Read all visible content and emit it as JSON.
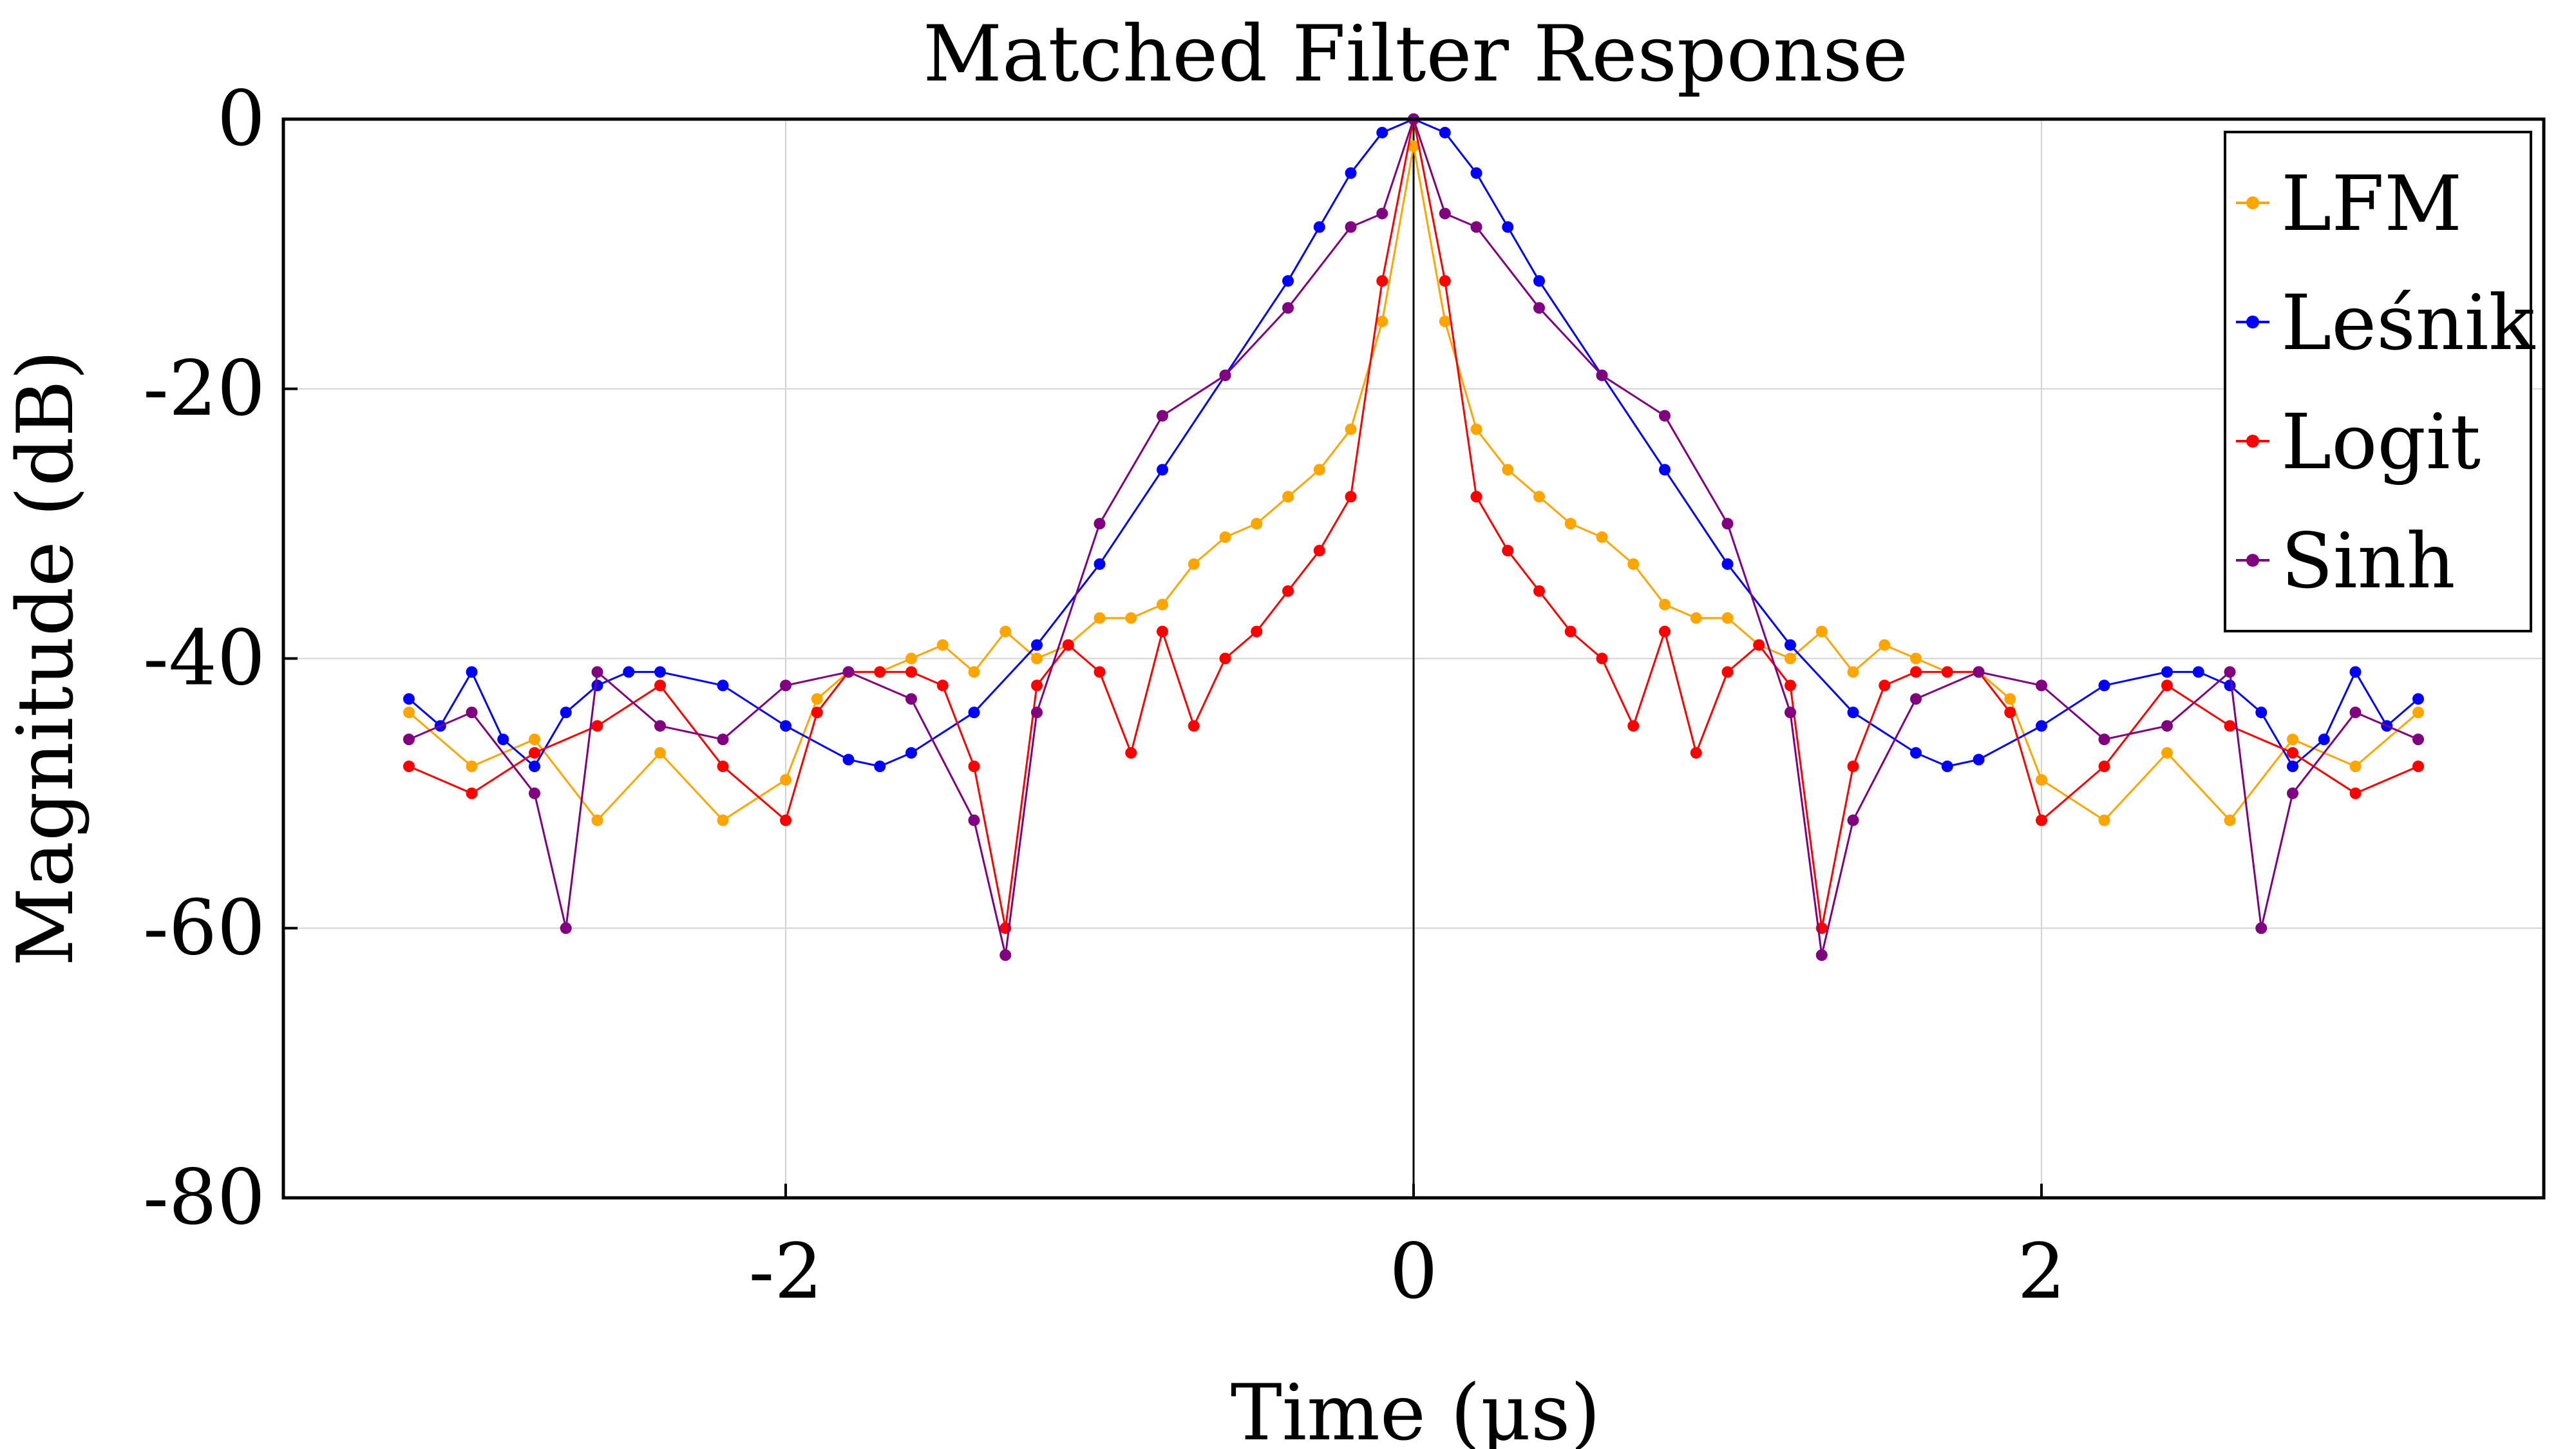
{
  "chart_data": {
    "type": "line",
    "title": "Matched Filter Response",
    "xlabel": "Time (µs)",
    "ylabel": "Magnitude (dB)",
    "xlim": [
      -3.6,
      3.6
    ],
    "ylim": [
      -80,
      0
    ],
    "xticks": [
      -2,
      0,
      2
    ],
    "xtick_labels": [
      "-2",
      "0",
      "2"
    ],
    "yticks": [
      0,
      -20,
      -40,
      -60,
      -80
    ],
    "ytick_labels": [
      "0",
      "-20",
      "-40",
      "-60",
      "-80"
    ],
    "grid": true,
    "markers": true,
    "legend_position": "top-right",
    "series": [
      {
        "name": "LFM",
        "color": "#ffa500",
        "x": [
          -3.2,
          -3.0,
          -2.8,
          -2.6,
          -2.4,
          -2.2,
          -2.0,
          -1.9,
          -1.8,
          -1.7,
          -1.6,
          -1.5,
          -1.4,
          -1.3,
          -1.2,
          -1.1,
          -1.0,
          -0.9,
          -0.8,
          -0.7,
          -0.6,
          -0.5,
          -0.4,
          -0.3,
          -0.2,
          -0.1,
          0.0,
          0.1,
          0.2,
          0.3,
          0.4,
          0.5,
          0.6,
          0.7,
          0.8,
          0.9,
          1.0,
          1.1,
          1.2,
          1.3,
          1.4,
          1.5,
          1.6,
          1.7,
          1.8,
          1.9,
          2.0,
          2.2,
          2.4,
          2.6,
          2.8,
          3.0,
          3.2
        ],
        "y": [
          -44,
          -48,
          -46,
          -52,
          -47,
          -52,
          -49,
          -43,
          -41,
          -41,
          -40,
          -39,
          -41,
          -38,
          -40,
          -39,
          -37,
          -37,
          -36,
          -33,
          -31,
          -30,
          -28,
          -26,
          -23,
          -15,
          -2,
          -15,
          -23,
          -26,
          -28,
          -30,
          -31,
          -33,
          -36,
          -37,
          -37,
          -39,
          -40,
          -38,
          -41,
          -39,
          -40,
          -41,
          -41,
          -43,
          -49,
          -52,
          -47,
          -52,
          -46,
          -48,
          -44
        ]
      },
      {
        "name": "Leśnik",
        "color": "#0000ff",
        "x": [
          -3.2,
          -3.1,
          -3.0,
          -2.9,
          -2.8,
          -2.7,
          -2.6,
          -2.5,
          -2.4,
          -2.2,
          -2.0,
          -1.8,
          -1.7,
          -1.6,
          -1.4,
          -1.2,
          -1.0,
          -0.8,
          -0.6,
          -0.4,
          -0.3,
          -0.2,
          -0.1,
          0.0,
          0.1,
          0.2,
          0.3,
          0.4,
          0.6,
          0.8,
          1.0,
          1.2,
          1.4,
          1.6,
          1.7,
          1.8,
          2.0,
          2.2,
          2.4,
          2.5,
          2.6,
          2.7,
          2.8,
          2.9,
          3.0,
          3.1,
          3.2
        ],
        "y": [
          -43,
          -45,
          -41,
          -46,
          -48,
          -44,
          -42,
          -41,
          -41,
          -42,
          -45,
          -47.5,
          -48,
          -47,
          -44,
          -39,
          -33,
          -26,
          -19,
          -12,
          -8,
          -4,
          -1,
          0,
          -1,
          -4,
          -8,
          -12,
          -19,
          -26,
          -33,
          -39,
          -44,
          -47,
          -48,
          -47.5,
          -45,
          -42,
          -41,
          -41,
          -42,
          -44,
          -48,
          -46,
          -41,
          -45,
          -43
        ]
      },
      {
        "name": "Logit",
        "color": "#ff0000",
        "x": [
          -3.2,
          -3.0,
          -2.8,
          -2.6,
          -2.4,
          -2.2,
          -2.0,
          -1.9,
          -1.8,
          -1.7,
          -1.6,
          -1.5,
          -1.4,
          -1.3,
          -1.2,
          -1.1,
          -1.0,
          -0.9,
          -0.8,
          -0.7,
          -0.6,
          -0.5,
          -0.4,
          -0.3,
          -0.2,
          -0.1,
          0.0,
          0.1,
          0.2,
          0.3,
          0.4,
          0.5,
          0.6,
          0.7,
          0.8,
          0.9,
          1.0,
          1.1,
          1.2,
          1.3,
          1.4,
          1.5,
          1.6,
          1.7,
          1.8,
          1.9,
          2.0,
          2.2,
          2.4,
          2.6,
          2.8,
          3.0,
          3.2
        ],
        "y": [
          -48,
          -50,
          -47,
          -45,
          -42,
          -48,
          -52,
          -44,
          -41,
          -41,
          -41,
          -42,
          -48,
          -60,
          -42,
          -39,
          -41,
          -47,
          -38,
          -45,
          -40,
          -38,
          -35,
          -32,
          -28,
          -12,
          0,
          -12,
          -28,
          -32,
          -35,
          -38,
          -40,
          -45,
          -38,
          -47,
          -41,
          -39,
          -42,
          -60,
          -48,
          -42,
          -41,
          -41,
          -41,
          -44,
          -52,
          -48,
          -42,
          -45,
          -47,
          -50,
          -48
        ]
      },
      {
        "name": "Sinh",
        "color": "#800080",
        "x": [
          -3.2,
          -3.0,
          -2.8,
          -2.7,
          -2.6,
          -2.4,
          -2.2,
          -2.0,
          -1.8,
          -1.6,
          -1.4,
          -1.3,
          -1.2,
          -1.0,
          -0.8,
          -0.6,
          -0.4,
          -0.2,
          -0.1,
          0.0,
          0.1,
          0.2,
          0.4,
          0.6,
          0.8,
          1.0,
          1.2,
          1.3,
          1.4,
          1.6,
          1.8,
          2.0,
          2.2,
          2.4,
          2.6,
          2.7,
          2.8,
          3.0,
          3.2
        ],
        "y": [
          -46,
          -44,
          -50,
          -60,
          -41,
          -45,
          -46,
          -42,
          -41,
          -43,
          -52,
          -62,
          -44,
          -30,
          -22,
          -19,
          -14,
          -8,
          -7,
          0,
          -7,
          -8,
          -14,
          -19,
          -22,
          -30,
          -44,
          -62,
          -52,
          -43,
          -41,
          -42,
          -46,
          -45,
          -41,
          -60,
          -50,
          -44,
          -46
        ]
      }
    ]
  }
}
